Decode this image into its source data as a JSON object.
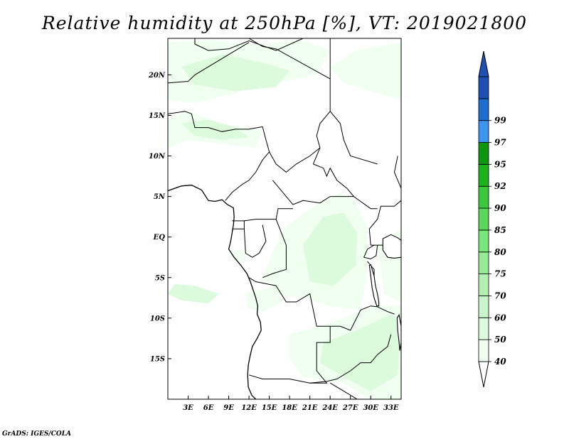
{
  "title": "Relative humidity at 250hPa [%], VT: 2019021800",
  "credit": "GrADS: IGES/COLA",
  "map": {
    "lon_range": [
      0,
      34.5
    ],
    "lat_range": [
      -20,
      24.5
    ],
    "x_ticks": [
      "3E",
      "6E",
      "9E",
      "12E",
      "15E",
      "18E",
      "21E",
      "24E",
      "27E",
      "30E",
      "33E"
    ],
    "x_tick_values": [
      3,
      6,
      9,
      12,
      15,
      18,
      21,
      24,
      27,
      30,
      33
    ],
    "y_ticks": [
      "20N",
      "15N",
      "10N",
      "5N",
      "EQ",
      "5S",
      "10S",
      "15S"
    ],
    "y_tick_values": [
      20,
      15,
      10,
      5,
      0,
      -5,
      -10,
      -15
    ]
  },
  "colorbar": {
    "labels": [
      "40",
      "50",
      "60",
      "70",
      "75",
      "80",
      "85",
      "90",
      "92",
      "95",
      "97",
      "99"
    ],
    "colors": [
      "#f0fff0",
      "#dcfadc",
      "#c8f5c8",
      "#b4f0b4",
      "#96eb96",
      "#78e678",
      "#5ad75a",
      "#3cc83c",
      "#1eb41e",
      "#0f960f",
      "#3c96f0",
      "#1e6ed2",
      "#1e50b4"
    ],
    "low_arrow": "#ffffff",
    "high_arrow": "#1e50b4"
  },
  "humidity_regions": [
    {
      "name": "sahel-north-band",
      "level": 40,
      "points": [
        [
          0,
          24
        ],
        [
          6,
          24.3
        ],
        [
          12,
          23.8
        ],
        [
          20,
          24.2
        ],
        [
          24,
          23
        ],
        [
          22,
          20
        ],
        [
          16,
          19
        ],
        [
          10,
          17.8
        ],
        [
          4,
          16.5
        ],
        [
          0,
          17
        ]
      ]
    },
    {
      "name": "sahel-mid-band",
      "level": 50,
      "points": [
        [
          2,
          21
        ],
        [
          8,
          22.5
        ],
        [
          14,
          21.5
        ],
        [
          18,
          20.5
        ],
        [
          16,
          18.5
        ],
        [
          10,
          18
        ],
        [
          4,
          18.8
        ]
      ]
    },
    {
      "name": "northeast-band",
      "level": 40,
      "points": [
        [
          24,
          21
        ],
        [
          28,
          23
        ],
        [
          34.5,
          24
        ],
        [
          34.5,
          17
        ],
        [
          30,
          18
        ],
        [
          26,
          19
        ]
      ]
    },
    {
      "name": "west-band",
      "level": 40,
      "points": [
        [
          0,
          14.5
        ],
        [
          3,
          15.5
        ],
        [
          8,
          14
        ],
        [
          14,
          13.2
        ],
        [
          13,
          11
        ],
        [
          8,
          11.5
        ],
        [
          3,
          12
        ],
        [
          0,
          11
        ]
      ]
    },
    {
      "name": "west-band-core",
      "level": 50,
      "points": [
        [
          2,
          14
        ],
        [
          6,
          14.5
        ],
        [
          10,
          13.5
        ],
        [
          12,
          12.3
        ],
        [
          8,
          12
        ],
        [
          4,
          12.5
        ]
      ]
    },
    {
      "name": "ocean-patch",
      "level": 50,
      "points": [
        [
          1,
          -5.8
        ],
        [
          4,
          -6
        ],
        [
          7.5,
          -7
        ],
        [
          6,
          -8.2
        ],
        [
          2,
          -7.8
        ],
        [
          0,
          -7
        ]
      ]
    },
    {
      "name": "gabon-patch",
      "level": 40,
      "points": [
        [
          9.3,
          -1.8
        ],
        [
          11.2,
          -1.5
        ],
        [
          11.5,
          -3
        ],
        [
          9.8,
          -3.2
        ]
      ]
    },
    {
      "name": "congo-basin",
      "level": 40,
      "points": [
        [
          17,
          1
        ],
        [
          22,
          4
        ],
        [
          25.5,
          5.5
        ],
        [
          28,
          4
        ],
        [
          29.5,
          1
        ],
        [
          29.5,
          -4
        ],
        [
          28.5,
          -9
        ],
        [
          24,
          -8.5
        ],
        [
          20,
          -7.5
        ],
        [
          16,
          -7
        ],
        [
          14,
          -5
        ]
      ]
    },
    {
      "name": "congo-core",
      "level": 50,
      "points": [
        [
          20,
          -1
        ],
        [
          23,
          2.5
        ],
        [
          26,
          3
        ],
        [
          28,
          0.5
        ],
        [
          27.8,
          -3.5
        ],
        [
          24.5,
          -6
        ],
        [
          21,
          -5.5
        ]
      ]
    },
    {
      "name": "angola-patch",
      "level": 40,
      "points": [
        [
          11.5,
          -6.8
        ],
        [
          15.5,
          -6.2
        ],
        [
          17,
          -8
        ],
        [
          14,
          -9.2
        ],
        [
          11.8,
          -8.8
        ]
      ]
    },
    {
      "name": "zambia-region",
      "level": 40,
      "points": [
        [
          18,
          -12
        ],
        [
          22.5,
          -11
        ],
        [
          26,
          -10
        ],
        [
          30,
          -8.5
        ],
        [
          34.5,
          -8.5
        ],
        [
          34.5,
          -20
        ],
        [
          30,
          -20
        ],
        [
          26,
          -18
        ],
        [
          20,
          -17.2
        ],
        [
          18,
          -15
        ]
      ]
    },
    {
      "name": "zambia-core",
      "level": 50,
      "points": [
        [
          23,
          -13
        ],
        [
          28,
          -11.5
        ],
        [
          33,
          -9.5
        ],
        [
          34.5,
          -11
        ],
        [
          34,
          -17
        ],
        [
          30,
          -19
        ],
        [
          25.5,
          -17
        ],
        [
          22.5,
          -15.5
        ]
      ]
    },
    {
      "name": "east-edge",
      "level": 40,
      "points": [
        [
          31,
          -1
        ],
        [
          34.5,
          1
        ],
        [
          34.5,
          -8
        ],
        [
          32,
          -7
        ]
      ]
    }
  ],
  "borders": [
    [
      [
        4,
        24.5
      ],
      [
        4,
        23.8
      ],
      [
        6,
        23
      ],
      [
        9,
        23.2
      ],
      [
        12,
        24.2
      ],
      [
        16,
        23
      ],
      [
        20,
        24.5
      ]
    ],
    [
      [
        0,
        19
      ],
      [
        3,
        19.2
      ],
      [
        4,
        20
      ],
      [
        10,
        23
      ],
      [
        12,
        24
      ]
    ],
    [
      [
        12,
        24.5
      ],
      [
        14,
        23.5
      ],
      [
        16,
        23.2
      ],
      [
        24,
        19.5
      ],
      [
        24,
        15.5
      ],
      [
        22.5,
        14
      ],
      [
        22,
        12.5
      ],
      [
        22.5,
        11
      ],
      [
        21.5,
        9
      ]
    ],
    [
      [
        24,
        19.5
      ],
      [
        24,
        24.5
      ]
    ],
    [
      [
        0,
        15.2
      ],
      [
        1,
        15.3
      ],
      [
        2.5,
        15.5
      ],
      [
        3.5,
        15.2
      ],
      [
        4,
        13.5
      ],
      [
        6,
        13.5
      ],
      [
        8,
        13
      ],
      [
        10,
        13.3
      ],
      [
        12,
        13.3
      ],
      [
        14,
        13.6
      ]
    ],
    [
      [
        14,
        13.6
      ],
      [
        14.5,
        12
      ],
      [
        15,
        10.5
      ],
      [
        14,
        9.5
      ],
      [
        13,
        8
      ],
      [
        12,
        7
      ],
      [
        11,
        6.5
      ],
      [
        9.5,
        5.5
      ],
      [
        8.5,
        4.5
      ]
    ],
    [
      [
        15,
        10.5
      ],
      [
        16,
        9
      ],
      [
        17.5,
        8
      ],
      [
        19,
        9
      ],
      [
        21,
        10
      ],
      [
        22.5,
        11
      ]
    ],
    [
      [
        21.5,
        9
      ],
      [
        23,
        8.5
      ],
      [
        23.5,
        7.5
      ],
      [
        24,
        8.5
      ],
      [
        25,
        7
      ],
      [
        26.5,
        6
      ],
      [
        27.5,
        5
      ]
    ],
    [
      [
        15.5,
        7
      ],
      [
        17.5,
        5
      ],
      [
        18.5,
        4
      ],
      [
        20,
        4.5
      ],
      [
        22.5,
        4.2
      ],
      [
        24,
        5
      ],
      [
        27.5,
        5
      ],
      [
        30,
        3.5
      ],
      [
        31,
        3.5
      ]
    ],
    [
      [
        24,
        15.5
      ],
      [
        25.5,
        14
      ],
      [
        26,
        12
      ],
      [
        27,
        10
      ],
      [
        29,
        9.5
      ],
      [
        31,
        9
      ]
    ],
    [
      [
        34,
        10
      ],
      [
        33.5,
        8
      ],
      [
        34.5,
        6
      ]
    ],
    [
      [
        9.5,
        2
      ],
      [
        11.3,
        2
      ],
      [
        13,
        2.2
      ],
      [
        16,
        2.2
      ],
      [
        16.3,
        3.5
      ],
      [
        18.5,
        3.5
      ]
    ],
    [
      [
        11.3,
        2
      ],
      [
        11.3,
        1
      ],
      [
        9.5,
        1
      ]
    ],
    [
      [
        11.3,
        1
      ],
      [
        11.5,
        -2
      ],
      [
        12.5,
        -2.5
      ],
      [
        13.5,
        -2
      ],
      [
        14.5,
        -0.5
      ],
      [
        14,
        1.5
      ]
    ],
    [
      [
        16,
        2.2
      ],
      [
        17.5,
        -1
      ],
      [
        17.5,
        -4
      ],
      [
        15.5,
        -4.5
      ],
      [
        14,
        -5
      ]
    ],
    [
      [
        12,
        -5
      ],
      [
        13,
        -5.5
      ],
      [
        16,
        -6
      ],
      [
        17.5,
        -8
      ],
      [
        19,
        -8
      ],
      [
        21,
        -7
      ],
      [
        22,
        -11
      ],
      [
        24,
        -11
      ]
    ],
    [
      [
        24,
        -11
      ],
      [
        24,
        -13
      ],
      [
        22,
        -13
      ],
      [
        22,
        -16.5
      ],
      [
        23.5,
        -18
      ],
      [
        21,
        -18
      ],
      [
        18,
        -17.5
      ],
      [
        14,
        -17.5
      ],
      [
        12,
        -17
      ]
    ],
    [
      [
        24,
        -11
      ],
      [
        25.5,
        -11
      ],
      [
        27,
        -11.5
      ],
      [
        28.5,
        -9
      ],
      [
        30,
        -8.5
      ],
      [
        31,
        -8.6
      ]
    ],
    [
      [
        21,
        -18
      ],
      [
        23.5,
        -17.8
      ],
      [
        25,
        -17.5
      ],
      [
        27,
        -16.5
      ],
      [
        28.5,
        -15.5
      ],
      [
        30,
        -15.5
      ],
      [
        31,
        -14.5
      ],
      [
        32.5,
        -13.5
      ],
      [
        33,
        -12
      ]
    ],
    [
      [
        24,
        -18
      ],
      [
        26,
        -19
      ],
      [
        28,
        -20
      ]
    ],
    [
      [
        30.5,
        -1
      ],
      [
        29.5,
        -1.5
      ],
      [
        29,
        -2.5
      ],
      [
        30,
        -2.7
      ],
      [
        30.8,
        -2.3
      ],
      [
        31,
        -1
      ]
    ],
    [
      [
        29.5,
        -3
      ],
      [
        30.5,
        -4
      ],
      [
        30.5,
        -7
      ]
    ],
    [
      [
        31,
        -8.6
      ],
      [
        32.5,
        -9.2
      ],
      [
        33.5,
        -9.5
      ]
    ],
    [
      [
        30,
        -1
      ],
      [
        31.5,
        -1
      ],
      [
        34,
        -1
      ]
    ],
    [
      [
        30,
        -1
      ],
      [
        29.8,
        1
      ],
      [
        31,
        2.2
      ],
      [
        31.5,
        3.8
      ],
      [
        33.5,
        3.8
      ],
      [
        34.5,
        4.5
      ]
    ]
  ],
  "coastline": [
    [
      [
        0,
        5.7
      ],
      [
        2,
        6.3
      ],
      [
        3.5,
        6.4
      ],
      [
        5,
        5.8
      ],
      [
        6,
        4.5
      ],
      [
        7,
        4.4
      ],
      [
        8,
        4.6
      ],
      [
        8.8,
        4
      ],
      [
        9.7,
        3.6
      ],
      [
        9.8,
        2.5
      ],
      [
        9.7,
        1.5
      ],
      [
        9.5,
        0.5
      ],
      [
        9.3,
        -0.5
      ],
      [
        9,
        -1.5
      ],
      [
        9.8,
        -2.5
      ],
      [
        10.8,
        -3.5
      ],
      [
        11.7,
        -4.5
      ],
      [
        12.2,
        -5.5
      ],
      [
        12.6,
        -6.5
      ],
      [
        13,
        -7.5
      ],
      [
        13.3,
        -8.5
      ],
      [
        13.2,
        -9.5
      ],
      [
        13.7,
        -10.5
      ],
      [
        13.8,
        -11.5
      ],
      [
        13.2,
        -12.5
      ],
      [
        12.5,
        -13.5
      ],
      [
        12.2,
        -14.5
      ],
      [
        11.9,
        -15.8
      ],
      [
        11.8,
        -17
      ],
      [
        11.9,
        -18.5
      ],
      [
        12.4,
        -19.5
      ],
      [
        13,
        -20
      ]
    ]
  ],
  "lakes": [
    [
      [
        30,
        -3.4
      ],
      [
        30.5,
        -4.8
      ],
      [
        30.7,
        -6
      ],
      [
        31,
        -7
      ],
      [
        31.2,
        -8
      ],
      [
        31.2,
        -8.5
      ],
      [
        30.9,
        -8.5
      ],
      [
        30.5,
        -7.5
      ],
      [
        30.2,
        -6.2
      ],
      [
        30,
        -4.8
      ],
      [
        29.8,
        -3.5
      ]
    ],
    [
      [
        34.2,
        -9.6
      ],
      [
        34.5,
        -11
      ],
      [
        34.5,
        -13
      ],
      [
        34.3,
        -14
      ],
      [
        34.2,
        -13
      ],
      [
        34,
        -11.5
      ],
      [
        33.9,
        -10
      ]
    ],
    [
      [
        31.8,
        -0.2
      ],
      [
        33,
        0.3
      ],
      [
        34,
        -0.1
      ],
      [
        34.5,
        -0.4
      ],
      [
        34.5,
        -2.5
      ],
      [
        33.5,
        -2.6
      ],
      [
        32.5,
        -2.5
      ],
      [
        31.8,
        -1.6
      ]
    ]
  ]
}
